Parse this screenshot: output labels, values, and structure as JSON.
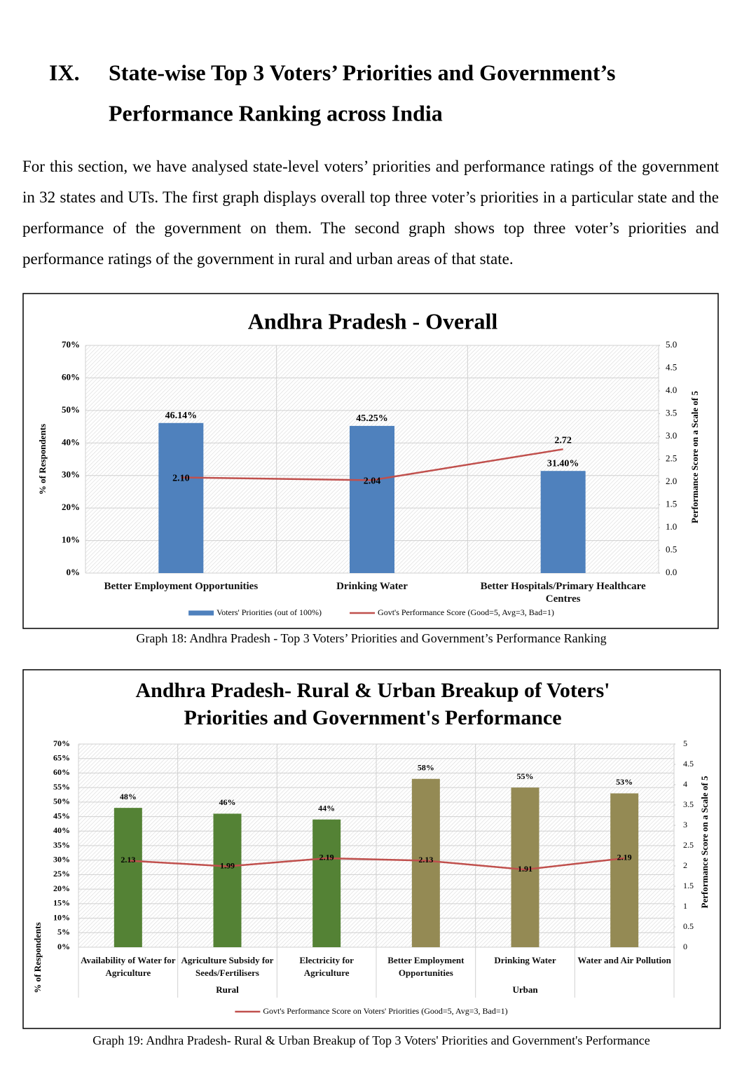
{
  "heading": {
    "number": "IX.",
    "title_lines": [
      "State-wise Top 3 Voters’ Priorities and Government’s",
      "Performance Ranking across India"
    ]
  },
  "paragraph": "For this section, we have analysed state-level voters’ priorities and performance ratings of the government in 32 states and UTs. The first graph displays overall top three voter’s priorities in a particular state and the performance of the government on them. The second graph shows top three voter’s priorities and performance ratings of the government in rural and urban areas of that state.",
  "chart_data": [
    {
      "type": "bar",
      "title": [
        "Andhra Pradesh - Overall"
      ],
      "categories": [
        "Better Employment Opportunities",
        "Drinking Water",
        "Better Hospitals/Primary Healthcare Centres"
      ],
      "series": [
        {
          "name": "Voters' Priorities (out of 100%)",
          "color": "#4f81bd",
          "values": [
            46.14,
            45.25,
            31.4
          ],
          "value_labels": [
            "46.14%",
            "45.25%",
            "31.40%"
          ]
        },
        {
          "name": "Govt's Performance Score (Good=5, Avg=3, Bad=1)",
          "type": "line",
          "axis": "y2",
          "color": "#c0504d",
          "values": [
            2.1,
            2.04,
            2.72
          ],
          "value_labels": [
            "2.10",
            "2.04",
            "2.72"
          ]
        }
      ],
      "ylabel": "% of Respondents",
      "y2label": "Performance Score on a Scale of 5",
      "ylim": [
        0,
        70
      ],
      "yticks": [
        {
          "value": 0,
          "label": "0%"
        },
        {
          "value": 10,
          "label": "10%"
        },
        {
          "value": 20,
          "label": "20%"
        },
        {
          "value": 30,
          "label": "30%"
        },
        {
          "value": 40,
          "label": "40%"
        },
        {
          "value": 50,
          "label": "50%"
        },
        {
          "value": 60,
          "label": "60%"
        },
        {
          "value": 70,
          "label": "70%"
        }
      ],
      "y2lim": [
        0,
        5
      ],
      "y2ticks": [
        {
          "value": 0,
          "label": "0.0"
        },
        0.5,
        {
          "value": 1,
          "label": "1.0"
        },
        1.5,
        {
          "value": 2,
          "label": "2.0"
        },
        2.5,
        {
          "value": 3,
          "label": "3.0"
        },
        3.5,
        {
          "value": 4,
          "label": "4.0"
        },
        4.5,
        {
          "value": 5,
          "label": "5.0"
        }
      ],
      "grid": true,
      "caption": "Graph 18: Andhra Pradesh - Top 3 Voters’ Priorities and Government’s Performance Ranking"
    },
    {
      "type": "bar",
      "title": [
        "Andhra Pradesh- Rural & Urban Breakup of Voters'",
        "Priorities and Government's Performance"
      ],
      "categories": [
        "Availability of Water for Agriculture",
        "Agriculture Subsidy for Seeds/Fertilisers",
        "Electricity for Agriculture",
        "Better Employment Opportunities",
        "Drinking Water",
        "Water and Air Pollution"
      ],
      "category_groups": [
        "Rural",
        "Rural",
        "Rural",
        "Urban",
        "Urban",
        "Urban"
      ],
      "series": [
        {
          "colors": [
            "#548235",
            "#548235",
            "#548235",
            "#948a54",
            "#948a54",
            "#948a54"
          ],
          "values": [
            48,
            46,
            44,
            58,
            55,
            53
          ],
          "value_labels": [
            "48%",
            "46%",
            "44%",
            "58%",
            "55%",
            "53%"
          ]
        },
        {
          "name": "Govt's Performance Score on Voters' Priorities (Good=5, Avg=3, Bad=1)",
          "type": "line",
          "axis": "y2",
          "color": "#c0504d",
          "values": [
            2.13,
            1.99,
            2.19,
            2.13,
            1.91,
            2.19
          ]
        }
      ],
      "ylabel": "% of Respondents",
      "y2label": "Performance Score on a Scale of 5",
      "ylim": [
        0,
        70
      ],
      "yticks": [
        {
          "value": 0,
          "label": "0%"
        },
        {
          "value": 5,
          "label": "5%"
        },
        {
          "value": 10,
          "label": "10%"
        },
        {
          "value": 15,
          "label": "15%"
        },
        {
          "value": 20,
          "label": "20%"
        },
        {
          "value": 25,
          "label": "25%"
        },
        {
          "value": 30,
          "label": "30%"
        },
        {
          "value": 35,
          "label": "35%"
        },
        {
          "value": 40,
          "label": "40%"
        },
        {
          "value": 45,
          "label": "45%"
        },
        {
          "value": 50,
          "label": "50%"
        },
        {
          "value": 55,
          "label": "55%"
        },
        {
          "value": 60,
          "label": "60%"
        },
        {
          "value": 65,
          "label": "65%"
        },
        {
          "value": 70,
          "label": "70%"
        }
      ],
      "y2lim": [
        0,
        5
      ],
      "y2ticks": [
        0,
        0.5,
        1,
        1.5,
        2,
        2.5,
        3,
        3.5,
        4,
        4.5,
        5
      ],
      "grid": true,
      "caption": "Graph 19: Andhra Pradesh- Rural & Urban Breakup of Top 3 Voters' Priorities and Government's Performance"
    }
  ]
}
